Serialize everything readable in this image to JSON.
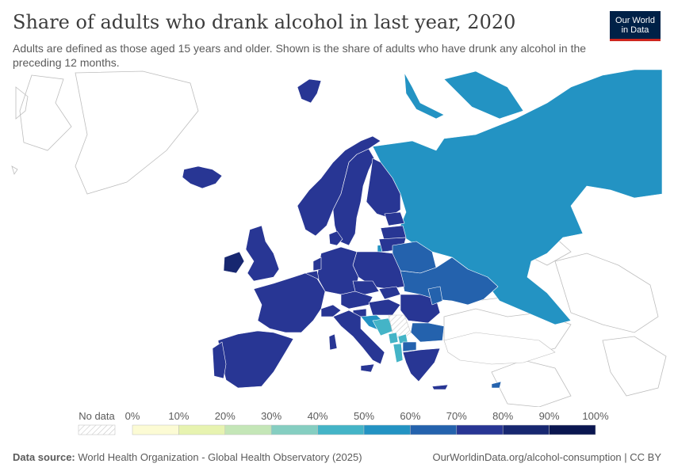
{
  "title": "Share of adults who drank alcohol in last year, 2020",
  "subtitle": "Adults are defined as those aged 15 years and older. Shown is the share of adults who have drunk any alcohol in the preceding 12 months.",
  "logo": {
    "line1": "Our World",
    "line2": "in Data"
  },
  "legend": {
    "no_data_label": "No data",
    "ticks": [
      "0%",
      "10%",
      "20%",
      "30%",
      "40%",
      "50%",
      "60%",
      "70%",
      "80%",
      "90%",
      "100%"
    ],
    "colors": [
      "#fcfbd4",
      "#e7f3b0",
      "#c4e6b7",
      "#85cec1",
      "#44b4c7",
      "#2393c3",
      "#2462ad",
      "#283694",
      "#172770",
      "#0a1650"
    ]
  },
  "footer": {
    "source_label": "Data source:",
    "source_text": "World Health Organization - Global Health Observatory (2025)",
    "url": "OurWorldinData.org/alcohol-consumption | CC BY"
  }
}
